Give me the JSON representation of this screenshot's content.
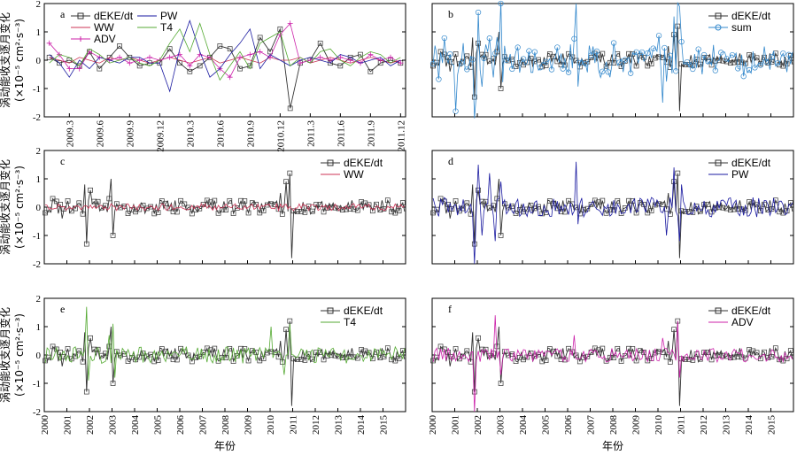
{
  "colors": {
    "dEKE": "#333333",
    "WW": "#cc3355",
    "ADV": "#cc22aa",
    "PW": "#1a1aa0",
    "T4": "#55aa33",
    "sum": "#3388cc"
  },
  "labels": {
    "ylabel_main": "涡动能收支逐月变化",
    "ylabel_unit": "(×10⁻⁵ cm²·s⁻³)",
    "xlabel": "年份"
  },
  "chart_data": [
    {
      "type": "line",
      "panel": "a",
      "ylim": [
        -2,
        2
      ],
      "yticks": [
        "2",
        "1",
        "0",
        "-1",
        "-2"
      ],
      "xticks": [
        "2009.3",
        "2009.6",
        "2009.9",
        "2009.12",
        "2010.3",
        "2010.6",
        "2010.9",
        "2010.12",
        "2011.3",
        "2011.6",
        "2011.9",
        "2011.12"
      ],
      "legend": [
        "dEKE/dt",
        "WW",
        "ADV",
        "PW",
        "T4"
      ],
      "series": [
        {
          "name": "dEKE/dt",
          "key": "dEKE",
          "marker": "square",
          "values": [
            0.1,
            -0.1,
            0.0,
            -0.2,
            0.3,
            -0.3,
            0.1,
            0.5,
            0.1,
            -0.2,
            -0.1,
            -0.1,
            0.4,
            -0.1,
            -0.4,
            -0.2,
            0.1,
            0.5,
            0.4,
            -0.3,
            -0.2,
            0.8,
            0.3,
            1.1,
            -1.7,
            -0.1,
            0.0,
            0.6,
            -0.1,
            -0.2,
            0.1,
            0.2,
            -0.4,
            -0.1,
            0.0,
            -0.1
          ]
        },
        {
          "name": "WW",
          "key": "WW",
          "marker": "none",
          "values": [
            0.1,
            0.0,
            -0.1,
            0.1,
            0.0,
            -0.1,
            0.1,
            0.0,
            0.1,
            0.0,
            -0.1,
            0.0,
            0.1,
            0.0,
            -0.1,
            0.0,
            0.1,
            -0.1,
            0.0,
            0.1,
            0.0,
            -0.1,
            0.1,
            0.0,
            0.0,
            0.1,
            -0.1,
            0.0,
            0.1,
            0.0,
            -0.1,
            0.0,
            0.1,
            0.0,
            -0.1,
            0.0
          ]
        },
        {
          "name": "ADV",
          "key": "ADV",
          "marker": "plus",
          "values": [
            0.6,
            0.2,
            -0.3,
            -0.3,
            0.3,
            0.1,
            0.0,
            0.1,
            -0.1,
            0.0,
            0.1,
            0.0,
            0.1,
            0.2,
            -0.2,
            0.2,
            0.1,
            -0.3,
            -0.6,
            0.1,
            0.2,
            0.3,
            0.1,
            0.9,
            1.3,
            -0.1,
            0.0,
            0.1,
            0.0,
            0.1,
            0.0,
            -0.1,
            0.2,
            0.0,
            0.1,
            -0.1
          ]
        },
        {
          "name": "PW",
          "key": "PW",
          "marker": "none",
          "values": [
            0.2,
            -0.1,
            -0.6,
            0.0,
            -0.3,
            0.1,
            0.0,
            -0.1,
            0.1,
            0.1,
            -0.1,
            -0.1,
            -1.1,
            0.4,
            1.4,
            0.3,
            -0.6,
            -0.3,
            0.2,
            0.6,
            1.1,
            -0.3,
            0.2,
            0.0,
            -0.2,
            0.0,
            0.1,
            0.0,
            -0.1,
            0.2,
            0.1,
            -0.1,
            0.0,
            0.1,
            -0.2,
            0.0
          ]
        },
        {
          "name": "T4",
          "key": "T4",
          "marker": "none",
          "values": [
            -0.1,
            0.2,
            0.1,
            -0.2,
            0.4,
            0.2,
            -0.1,
            0.0,
            0.1,
            -0.1,
            -0.2,
            0.0,
            0.6,
            1.1,
            0.3,
            1.3,
            0.2,
            -0.7,
            -0.2,
            0.3,
            -0.3,
            0.6,
            0.8,
            1.0,
            -0.2,
            0.1,
            -0.1,
            0.3,
            0.4,
            0.0,
            -0.2,
            0.1,
            0.3,
            0.2,
            -0.1,
            0.1
          ]
        }
      ]
    },
    {
      "type": "line",
      "panel": "b",
      "ylim": [
        -2,
        2
      ],
      "legend": [
        "dEKE/dt",
        "sum"
      ],
      "series": [
        {
          "name": "dEKE/dt",
          "key": "dEKE",
          "marker": "square",
          "gen": "dEKE"
        },
        {
          "name": "sum",
          "key": "sum",
          "marker": "circle",
          "gen": "sum"
        }
      ]
    },
    {
      "type": "line",
      "panel": "c",
      "ylim": [
        -2,
        2
      ],
      "yticks": [
        "2",
        "1",
        "0",
        "-1",
        "-2"
      ],
      "legend": [
        "dEKE/dt",
        "WW"
      ],
      "series": [
        {
          "name": "dEKE/dt",
          "key": "dEKE",
          "marker": "square",
          "gen": "dEKE"
        },
        {
          "name": "WW",
          "key": "WW",
          "marker": "none",
          "gen": "WW"
        }
      ]
    },
    {
      "type": "line",
      "panel": "d",
      "ylim": [
        -2,
        2
      ],
      "legend": [
        "dEKE/dt",
        "PW"
      ],
      "series": [
        {
          "name": "dEKE/dt",
          "key": "dEKE",
          "marker": "square",
          "gen": "dEKE"
        },
        {
          "name": "PW",
          "key": "PW",
          "marker": "none",
          "gen": "PW"
        }
      ]
    },
    {
      "type": "line",
      "panel": "e",
      "ylim": [
        -2,
        2
      ],
      "yticks": [
        "2",
        "1",
        "0",
        "-1",
        "-2"
      ],
      "xticks": [
        "2000",
        "2001",
        "2002",
        "2003",
        "2004",
        "2005",
        "2006",
        "2007",
        "2008",
        "2009",
        "2010",
        "2011",
        "2012",
        "2013",
        "2014",
        "2015"
      ],
      "legend": [
        "dEKE/dt",
        "T4"
      ],
      "series": [
        {
          "name": "dEKE/dt",
          "key": "dEKE",
          "marker": "square",
          "gen": "dEKE"
        },
        {
          "name": "T4",
          "key": "T4",
          "marker": "none",
          "gen": "T4"
        }
      ]
    },
    {
      "type": "line",
      "panel": "f",
      "ylim": [
        -2,
        2
      ],
      "xticks": [
        "2000",
        "2001",
        "2002",
        "2003",
        "2004",
        "2005",
        "2006",
        "2007",
        "2008",
        "2009",
        "2010",
        "2011",
        "2012",
        "2013",
        "2014",
        "2015"
      ],
      "legend": [
        "dEKE/dt",
        "ADV"
      ],
      "series": [
        {
          "name": "dEKE/dt",
          "key": "dEKE",
          "marker": "square",
          "gen": "dEKE"
        },
        {
          "name": "ADV",
          "key": "ADV",
          "marker": "none",
          "gen": "ADV"
        }
      ]
    }
  ]
}
